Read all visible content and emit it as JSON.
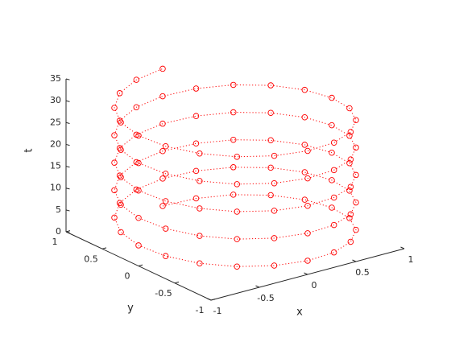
{
  "chart_data": {
    "type": "line3",
    "xlabel": "x",
    "ylabel": "y",
    "zlabel": "t",
    "color": "#ff0000",
    "marker": "o",
    "line_style": "dotted",
    "xlim": [
      -1,
      1
    ],
    "ylim": [
      -1,
      1
    ],
    "zlim": [
      0,
      35
    ],
    "xticks": [
      -1,
      -0.5,
      0,
      0.5,
      1
    ],
    "yticks": [
      -1,
      -0.5,
      0,
      0.5,
      1
    ],
    "zticks": [
      0,
      5,
      10,
      15,
      20,
      25,
      30,
      35
    ],
    "x": [
      0,
      0.309,
      0.588,
      0.809,
      0.951,
      1,
      0.951,
      0.809,
      0.588,
      0.309,
      0,
      -0.309,
      -0.588,
      -0.809,
      -0.951,
      -1,
      -0.951,
      -0.809,
      -0.588,
      -0.309,
      0,
      0.309,
      0.588,
      0.809,
      0.951,
      1,
      0.951,
      0.809,
      0.588,
      0.309,
      0,
      -0.309,
      -0.588,
      -0.809,
      -0.951,
      -1,
      -0.951,
      -0.809,
      -0.588,
      -0.309,
      0,
      0.309,
      0.588,
      0.809,
      0.951,
      1,
      0.951,
      0.809,
      0.588,
      0.309,
      0,
      -0.309,
      -0.588,
      -0.809,
      -0.951,
      -1,
      -0.951,
      -0.809,
      -0.588,
      -0.309,
      0,
      0.309,
      0.588,
      0.809,
      0.951,
      1,
      0.951,
      0.809,
      0.588,
      0.309,
      0,
      -0.309,
      -0.588,
      -0.809,
      -0.951,
      -1,
      -0.951,
      -0.809,
      -0.588,
      -0.309,
      0,
      0.309,
      0.588,
      0.809,
      0.951,
      1,
      0.951,
      0.809,
      0.588,
      0.309,
      0,
      -0.309,
      -0.588,
      -0.809,
      -0.951,
      -1,
      -0.951,
      -0.809,
      -0.588,
      -0.309,
      0
    ],
    "y": [
      1,
      0.951,
      0.809,
      0.588,
      0.309,
      0,
      -0.309,
      -0.588,
      -0.809,
      -0.951,
      -1,
      -0.951,
      -0.809,
      -0.588,
      -0.309,
      0,
      0.309,
      0.588,
      0.809,
      0.951,
      1,
      0.951,
      0.809,
      0.588,
      0.309,
      0,
      -0.309,
      -0.588,
      -0.809,
      -0.951,
      -1,
      -0.951,
      -0.809,
      -0.588,
      -0.309,
      0,
      0.309,
      0.588,
      0.809,
      0.951,
      1,
      0.951,
      0.809,
      0.588,
      0.309,
      0,
      -0.309,
      -0.588,
      -0.809,
      -0.951,
      -1,
      -0.951,
      -0.809,
      -0.588,
      -0.309,
      0,
      0.309,
      0.588,
      0.809,
      0.951,
      1,
      0.951,
      0.809,
      0.588,
      0.309,
      0,
      -0.309,
      -0.588,
      -0.809,
      -0.951,
      -1,
      -0.951,
      -0.809,
      -0.588,
      -0.309,
      0,
      0.309,
      0.588,
      0.809,
      0.951,
      1,
      0.951,
      0.809,
      0.588,
      0.309,
      0,
      -0.309,
      -0.588,
      -0.809,
      -0.951,
      -1,
      -0.951,
      -0.809,
      -0.588,
      -0.309,
      0,
      0.309,
      0.588,
      0.809,
      0.951,
      1
    ],
    "z": [
      0,
      0.31,
      0.63,
      0.94,
      1.26,
      1.57,
      1.88,
      2.2,
      2.51,
      2.83,
      3.14,
      3.46,
      3.77,
      4.08,
      4.4,
      4.71,
      5.03,
      5.34,
      5.65,
      5.97,
      6.28,
      6.6,
      6.91,
      7.23,
      7.54,
      7.85,
      8.17,
      8.48,
      8.8,
      9.11,
      9.42,
      9.74,
      10.05,
      10.37,
      10.68,
      11,
      11.31,
      11.62,
      11.94,
      12.25,
      12.57,
      12.88,
      13.19,
      13.51,
      13.82,
      14.14,
      14.45,
      14.77,
      15.08,
      15.39,
      15.71,
      16.02,
      16.34,
      16.65,
      16.96,
      17.28,
      17.59,
      17.91,
      18.22,
      18.54,
      18.85,
      19.16,
      19.48,
      19.79,
      20.11,
      20.42,
      20.73,
      21.05,
      21.36,
      21.68,
      21.99,
      22.31,
      22.62,
      22.93,
      23.25,
      23.56,
      23.88,
      24.19,
      24.5,
      24.82,
      25.13,
      25.45,
      25.76,
      26.08,
      26.39,
      26.7,
      27.02,
      27.33,
      27.65,
      27.96,
      28.27,
      28.59,
      28.9,
      29.22,
      29.53,
      29.85,
      30.16,
      30.47,
      30.79,
      31.1,
      31.42
    ]
  }
}
